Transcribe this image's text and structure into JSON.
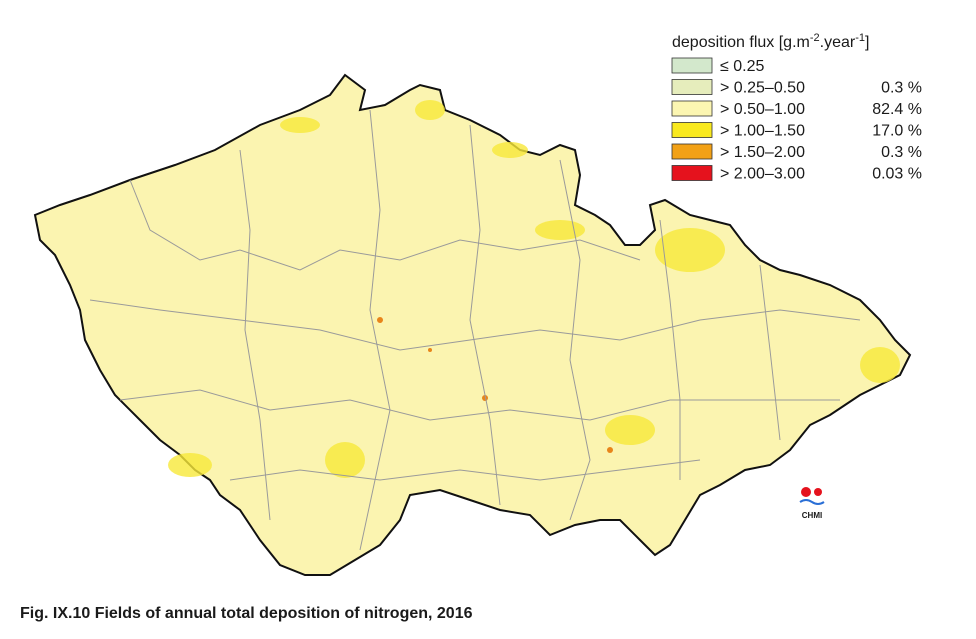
{
  "legend": {
    "title": {
      "main": "deposition flux [g.m",
      "sup1": "-2",
      "mid": ".year",
      "sup2": "-1",
      "end": "]"
    },
    "items": [
      {
        "label": "≤ 0.25",
        "color": "#d3e8cc"
      },
      {
        "label": "> 0.25–0.50",
        "share": "0.3 %",
        "color": "#e6edbc"
      },
      {
        "label": "> 0.50–1.00",
        "share": "82.4 %",
        "color": "#fcf6b2"
      },
      {
        "label": "> 1.00–1.50",
        "share": "17.0 %",
        "color": "#f9e91f"
      },
      {
        "label": "> 1.50–2.00",
        "share": "0.3 %",
        "color": "#f2a116"
      },
      {
        "label": "> 2.00–3.00",
        "share": "0.03 %",
        "color": "#e5121d"
      }
    ]
  },
  "logo": {
    "text": "CHMI"
  },
  "caption": "Fig. IX.10  Fields of annual total deposition of nitrogen, 2016"
}
